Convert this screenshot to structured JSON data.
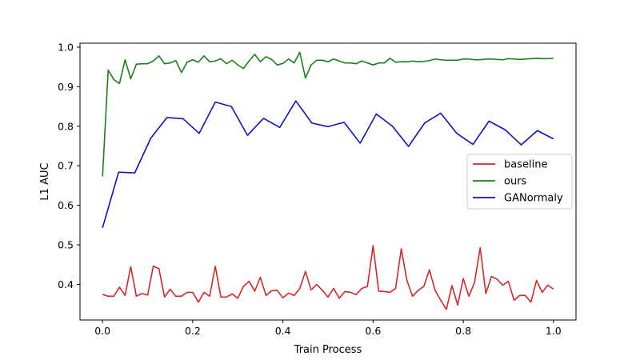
{
  "chart_data": {
    "type": "line",
    "title": "",
    "xlabel": "Train Process",
    "ylabel": "L1 AUC",
    "xlim": [
      -0.05,
      1.05
    ],
    "ylim": [
      0.31,
      1.01
    ],
    "x_ticks": [
      0.0,
      0.2,
      0.4,
      0.6,
      0.8,
      1.0
    ],
    "x_tick_labels": [
      "0.0",
      "0.2",
      "0.4",
      "0.6",
      "0.8",
      "1.0"
    ],
    "y_ticks": [
      0.4,
      0.5,
      0.6,
      0.7,
      0.8,
      0.9,
      1.0
    ],
    "y_tick_labels": [
      "0.4",
      "0.5",
      "0.6",
      "0.7",
      "0.8",
      "0.9",
      "1.0"
    ],
    "grid": false,
    "legend_position": "right",
    "series": [
      {
        "name": "baseline",
        "color": "#d62728",
        "x": [
          0.0,
          0.0125,
          0.025,
          0.0375,
          0.05,
          0.0625,
          0.075,
          0.0875,
          0.1,
          0.1125,
          0.125,
          0.1375,
          0.15,
          0.1625,
          0.175,
          0.1875,
          0.2,
          0.2125,
          0.225,
          0.2375,
          0.25,
          0.2625,
          0.275,
          0.2875,
          0.3,
          0.3125,
          0.325,
          0.3375,
          0.35,
          0.3625,
          0.375,
          0.3875,
          0.4,
          0.4125,
          0.425,
          0.4375,
          0.45,
          0.4625,
          0.475,
          0.4875,
          0.5,
          0.5125,
          0.525,
          0.5375,
          0.55,
          0.5625,
          0.575,
          0.5875,
          0.6,
          0.6125,
          0.625,
          0.6375,
          0.65,
          0.6625,
          0.675,
          0.6875,
          0.7,
          0.7125,
          0.725,
          0.7375,
          0.75,
          0.7625,
          0.775,
          0.7875,
          0.8,
          0.8125,
          0.825,
          0.8375,
          0.85,
          0.8625,
          0.875,
          0.8875,
          0.9,
          0.9125,
          0.925,
          0.9375,
          0.95,
          0.9625,
          0.975,
          0.9875,
          1.0
        ],
        "y": [
          0.375,
          0.37,
          0.37,
          0.393,
          0.372,
          0.445,
          0.37,
          0.377,
          0.373,
          0.446,
          0.44,
          0.368,
          0.388,
          0.37,
          0.37,
          0.38,
          0.38,
          0.355,
          0.38,
          0.37,
          0.446,
          0.368,
          0.368,
          0.376,
          0.365,
          0.395,
          0.408,
          0.383,
          0.418,
          0.372,
          0.384,
          0.385,
          0.366,
          0.378,
          0.372,
          0.39,
          0.433,
          0.386,
          0.4,
          0.385,
          0.368,
          0.39,
          0.365,
          0.382,
          0.38,
          0.374,
          0.39,
          0.395,
          0.498,
          0.383,
          0.382,
          0.38,
          0.39,
          0.49,
          0.41,
          0.37,
          0.385,
          0.395,
          0.437,
          0.385,
          0.36,
          0.337,
          0.397,
          0.348,
          0.415,
          0.37,
          0.405,
          0.493,
          0.377,
          0.42,
          0.413,
          0.398,
          0.408,
          0.36,
          0.372,
          0.372,
          0.355,
          0.41,
          0.38,
          0.398,
          0.388
        ]
      },
      {
        "name": "ours",
        "color": "#1a7f1a",
        "x": [
          0.0,
          0.0125,
          0.025,
          0.0375,
          0.05,
          0.0625,
          0.075,
          0.0875,
          0.1,
          0.1125,
          0.125,
          0.1375,
          0.15,
          0.1625,
          0.175,
          0.1875,
          0.2,
          0.2125,
          0.225,
          0.2375,
          0.25,
          0.2625,
          0.275,
          0.2875,
          0.3,
          0.3125,
          0.325,
          0.3375,
          0.35,
          0.3625,
          0.375,
          0.3875,
          0.4,
          0.4125,
          0.425,
          0.4375,
          0.45,
          0.4625,
          0.475,
          0.4875,
          0.5,
          0.5125,
          0.525,
          0.5375,
          0.55,
          0.5625,
          0.575,
          0.5875,
          0.6,
          0.6125,
          0.625,
          0.6375,
          0.65,
          0.6625,
          0.675,
          0.6875,
          0.7,
          0.7125,
          0.725,
          0.7375,
          0.75,
          0.7625,
          0.775,
          0.7875,
          0.8,
          0.8125,
          0.825,
          0.8375,
          0.85,
          0.8625,
          0.875,
          0.8875,
          0.9,
          0.9125,
          0.925,
          0.9375,
          0.95,
          0.9625,
          0.975,
          0.9875,
          1.0
        ],
        "y": [
          0.673,
          0.942,
          0.918,
          0.908,
          0.968,
          0.92,
          0.957,
          0.958,
          0.958,
          0.965,
          0.978,
          0.958,
          0.96,
          0.966,
          0.936,
          0.962,
          0.968,
          0.962,
          0.978,
          0.963,
          0.965,
          0.971,
          0.958,
          0.967,
          0.955,
          0.946,
          0.965,
          0.982,
          0.963,
          0.976,
          0.969,
          0.955,
          0.959,
          0.97,
          0.96,
          0.987,
          0.922,
          0.955,
          0.967,
          0.967,
          0.963,
          0.97,
          0.965,
          0.96,
          0.96,
          0.958,
          0.965,
          0.96,
          0.955,
          0.96,
          0.96,
          0.972,
          0.962,
          0.963,
          0.963,
          0.965,
          0.963,
          0.964,
          0.966,
          0.97,
          0.968,
          0.967,
          0.967,
          0.967,
          0.97,
          0.97,
          0.968,
          0.968,
          0.97,
          0.97,
          0.969,
          0.968,
          0.971,
          0.97,
          0.969,
          0.97,
          0.971,
          0.972,
          0.971,
          0.971,
          0.972
        ]
      },
      {
        "name": "GANormaly",
        "color": "#1010c8",
        "x": [
          0.0,
          0.0357,
          0.0714,
          0.1071,
          0.1429,
          0.1786,
          0.2143,
          0.25,
          0.2857,
          0.3214,
          0.3571,
          0.3929,
          0.4286,
          0.4643,
          0.5,
          0.5357,
          0.5714,
          0.6071,
          0.6429,
          0.6786,
          0.7143,
          0.75,
          0.7857,
          0.8214,
          0.8571,
          0.8929,
          0.9286,
          0.9643,
          1.0
        ],
        "y": [
          0.543,
          0.684,
          0.682,
          0.77,
          0.822,
          0.819,
          0.782,
          0.861,
          0.85,
          0.777,
          0.82,
          0.797,
          0.864,
          0.808,
          0.799,
          0.81,
          0.757,
          0.831,
          0.8,
          0.749,
          0.808,
          0.833,
          0.782,
          0.754,
          0.813,
          0.791,
          0.753,
          0.789,
          0.768
        ]
      }
    ]
  }
}
